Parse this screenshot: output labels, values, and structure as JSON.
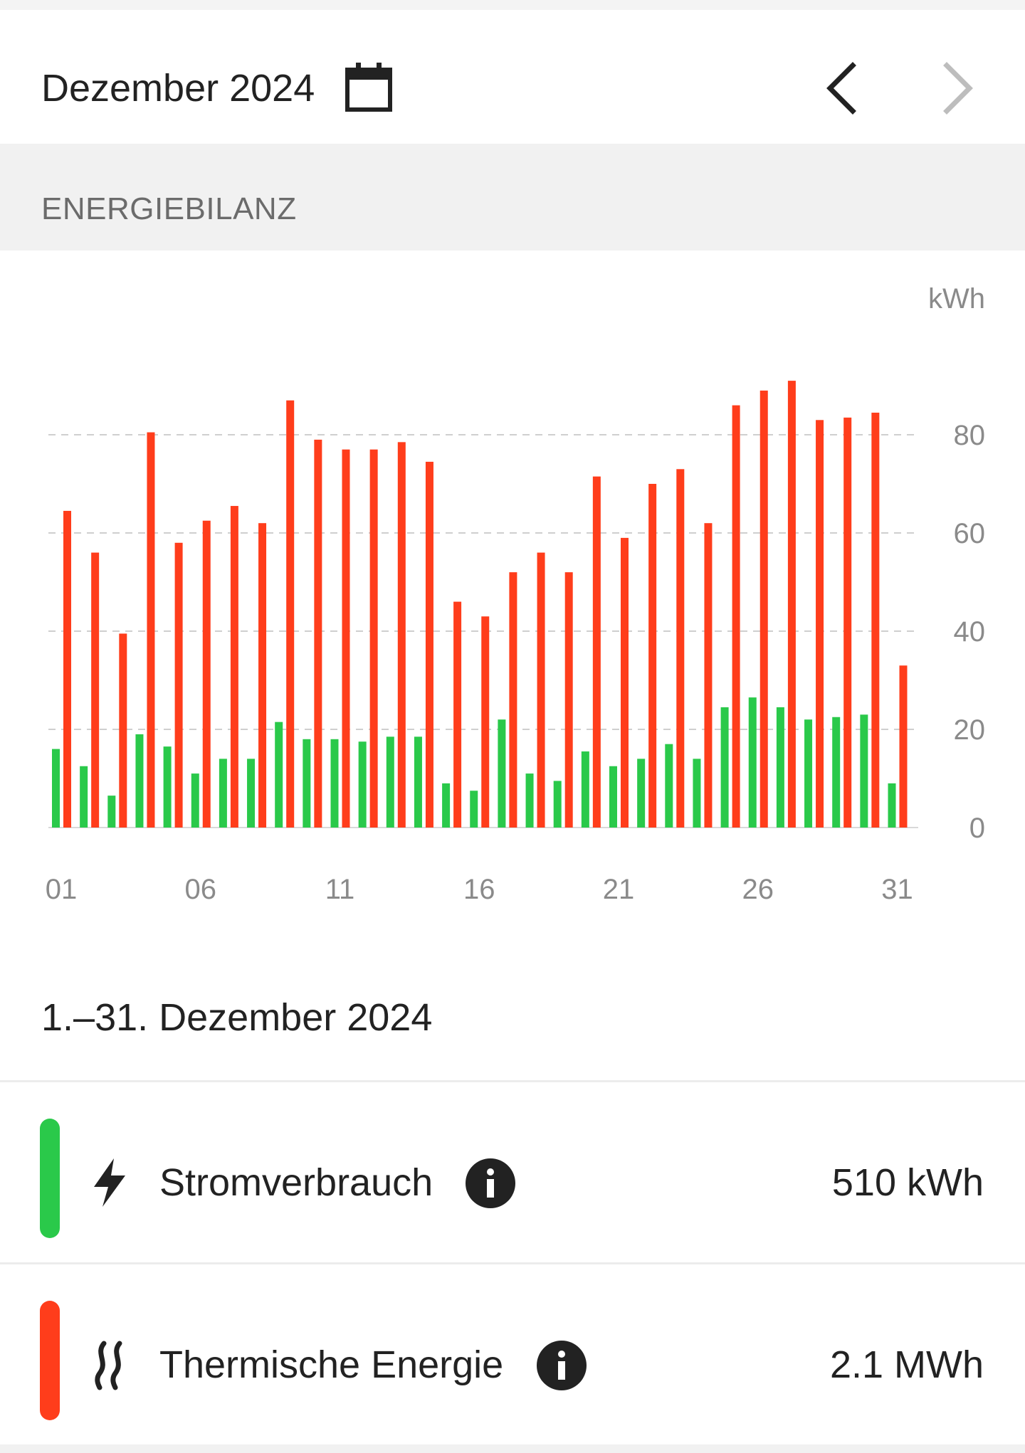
{
  "header": {
    "title": "Dezember 2024"
  },
  "section": {
    "title": "ENERGIEBILANZ"
  },
  "chart_data": {
    "type": "bar",
    "unit": "kWh",
    "categories": [
      "01",
      "02",
      "03",
      "04",
      "05",
      "06",
      "07",
      "08",
      "09",
      "10",
      "11",
      "12",
      "13",
      "14",
      "15",
      "16",
      "17",
      "18",
      "19",
      "20",
      "21",
      "22",
      "23",
      "24",
      "25",
      "26",
      "27",
      "28",
      "29",
      "30",
      "31"
    ],
    "x_tick_labels": [
      "01",
      "06",
      "11",
      "16",
      "21",
      "26",
      "31"
    ],
    "y_ticks": [
      0,
      20,
      40,
      60,
      80
    ],
    "ylim": [
      0,
      95
    ],
    "grid": true,
    "series": [
      {
        "name": "Stromverbrauch",
        "color": "#2ac94a",
        "values": [
          16,
          12.5,
          6.5,
          19,
          16.5,
          11,
          14,
          14,
          21.5,
          18,
          18,
          17.5,
          18.5,
          18.5,
          9,
          7.5,
          22,
          11,
          9.5,
          15.5,
          12.5,
          14,
          17,
          14,
          24.5,
          26.5,
          24.5,
          22,
          22.5,
          23,
          9
        ]
      },
      {
        "name": "Thermische Energie",
        "color": "#ff3d1b",
        "values": [
          64.5,
          56,
          39.5,
          80.5,
          58,
          62.5,
          65.5,
          62,
          87,
          79,
          77,
          77,
          78.5,
          74.5,
          46,
          43,
          52,
          56,
          52,
          71.5,
          59,
          70,
          73,
          62,
          86,
          89,
          91,
          83,
          83.5,
          84.5,
          33
        ]
      }
    ]
  },
  "summary": {
    "range": "1.–31. Dezember 2024",
    "items": [
      {
        "label": "Stromverbrauch",
        "value": "510 kWh",
        "color": "#2ac94a",
        "icon": "lightning-icon"
      },
      {
        "label": "Thermische Energie",
        "value": "2.1 MWh",
        "color": "#ff3d1b",
        "icon": "heat-waves-icon"
      }
    ]
  }
}
